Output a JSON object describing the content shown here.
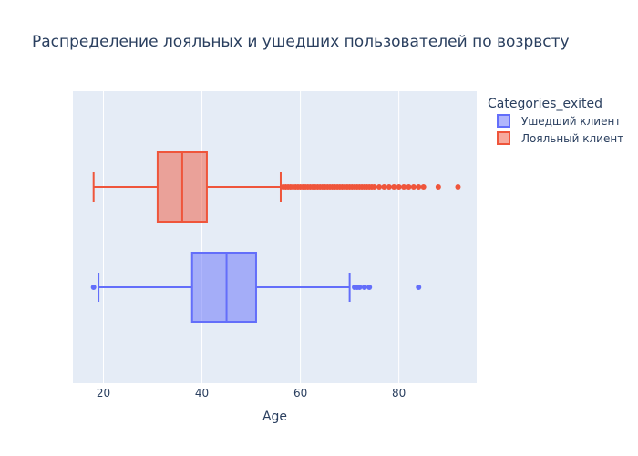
{
  "chart_data": {
    "type": "box",
    "orientation": "horizontal",
    "title": "Распределение лояльных и ушедших пользователей по возрвсту",
    "xlabel": "Age",
    "ylabel": "",
    "xlim": [
      13.8,
      95.8
    ],
    "x_ticks": [
      20,
      40,
      60,
      80
    ],
    "grid": true,
    "legend": {
      "title": "Categories_exited",
      "placement": "top-right",
      "entries": [
        "Ушедший клиент",
        "Лояльный клиент"
      ]
    },
    "series": [
      {
        "name": "Ушедший клиент",
        "color": "#636efa",
        "min": 19,
        "q1": 38,
        "median": 45,
        "q3": 51,
        "max": 70,
        "outliers": [
          18,
          71,
          71.5,
          72,
          73,
          74,
          84
        ]
      },
      {
        "name": "Лояльный клиент",
        "color": "#ef553b",
        "min": 18,
        "q1": 31,
        "median": 36,
        "q3": 41,
        "max": 56,
        "outliers": [
          56.5,
          57,
          57.5,
          58,
          58.5,
          59,
          59.5,
          60,
          60.5,
          61,
          61.5,
          62,
          62.5,
          63,
          63.5,
          64,
          64.5,
          65,
          65.5,
          66,
          66.5,
          67,
          67.5,
          68,
          68.5,
          69,
          69.5,
          70,
          70.5,
          71,
          71.5,
          72,
          72.5,
          73,
          73.5,
          74,
          74.5,
          75,
          76,
          77,
          78,
          79,
          80,
          81,
          82,
          83,
          84,
          85,
          88,
          92
        ]
      }
    ]
  }
}
